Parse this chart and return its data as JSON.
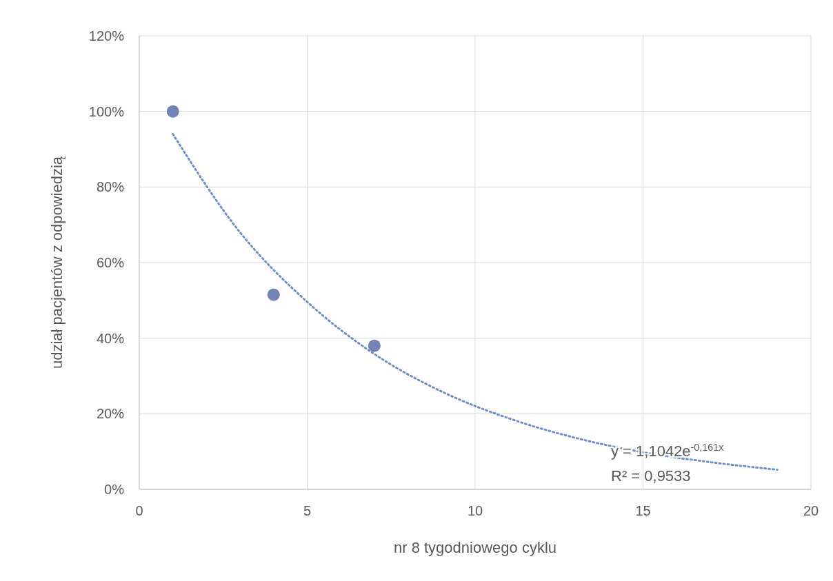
{
  "chart_data": {
    "type": "scatter",
    "xlabel": "nr 8 tygodniowego cyklu",
    "ylabel": "udział pacjentów z odpowiedzią",
    "xlim": [
      0,
      20
    ],
    "xticks": [
      0,
      5,
      10,
      15,
      20
    ],
    "ylim": [
      0,
      120
    ],
    "yticks": [
      {
        "value": 0,
        "label": "0%"
      },
      {
        "value": 20,
        "label": "20%"
      },
      {
        "value": 40,
        "label": "40%"
      },
      {
        "value": 60,
        "label": "60%"
      },
      {
        "value": 80,
        "label": "80%"
      },
      {
        "value": 100,
        "label": "100%"
      },
      {
        "value": 120,
        "label": "120%"
      }
    ],
    "grid": true,
    "series": [
      {
        "color": "#7383b5",
        "marker": "circle",
        "x": [
          1,
          4,
          7
        ],
        "values": [
          100,
          51.5,
          38
        ]
      },
      {
        "type": "line",
        "color": "#6f8fc8",
        "marker": "none",
        "line_style": "dotted",
        "x": [
          1,
          3,
          5,
          7,
          9,
          11,
          13,
          15,
          17,
          19
        ],
        "values": [
          94,
          68,
          49.6,
          35.8,
          25.9,
          18.8,
          13.6,
          9.8,
          7.2,
          5.2
        ]
      }
    ],
    "annotations": [
      "y = 1,1042e$^{-0,161x}$",
      "R² = 0,9533"
    ]
  }
}
